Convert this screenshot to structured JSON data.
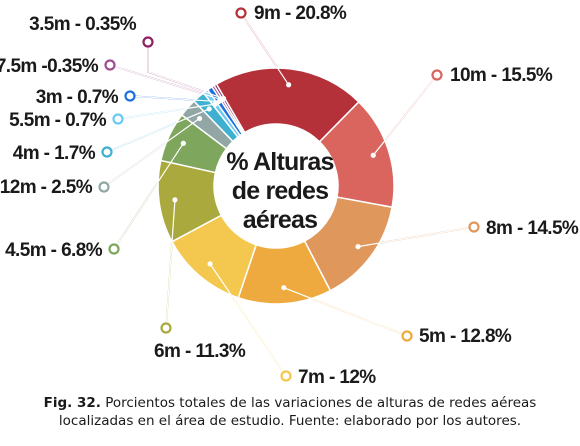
{
  "chart_data": {
    "type": "pie",
    "variant": "donut",
    "center_title": [
      "% Alturas",
      "de redes",
      "aéreas"
    ],
    "slices": [
      {
        "label": "9m - 20.8%",
        "value": 20.8,
        "color": "#b5313a"
      },
      {
        "label": "10m - 15.5%",
        "value": 15.5,
        "color": "#d9655e"
      },
      {
        "label": "8m - 14.5%",
        "value": 14.5,
        "color": "#e0975b"
      },
      {
        "label": "5m - 12.8%",
        "value": 12.8,
        "color": "#eeaa3e"
      },
      {
        "label": "7m - 12%",
        "value": 12.0,
        "color": "#f4c74e"
      },
      {
        "label": "6m - 11.3%",
        "value": 11.3,
        "color": "#a9a93d"
      },
      {
        "label": "4.5m - 6.8%",
        "value": 6.8,
        "color": "#7ea65c"
      },
      {
        "label": "12m - 2.5%",
        "value": 2.5,
        "color": "#93a6a6"
      },
      {
        "label": "4m - 1.7%",
        "value": 1.7,
        "color": "#3fb0cf"
      },
      {
        "label": "5.5m - 0.7%",
        "value": 0.7,
        "color": "#6cc9f1"
      },
      {
        "label": "3m - 0.7%",
        "value": 0.7,
        "color": "#1e6fe0"
      },
      {
        "label": "7.5m -0.35%",
        "value": 0.35,
        "color": "#9c4f91"
      },
      {
        "label": "3.5m - 0.35%",
        "value": 0.35,
        "color": "#8f1f62"
      }
    ]
  },
  "caption": {
    "fig_label": "Fig. 32.",
    "text_line1": " Porcientos totales de las variaciones de alturas de redes aéreas",
    "text_line2": "localizadas en el área de estudio. Fuente: elaborado por los autores."
  }
}
